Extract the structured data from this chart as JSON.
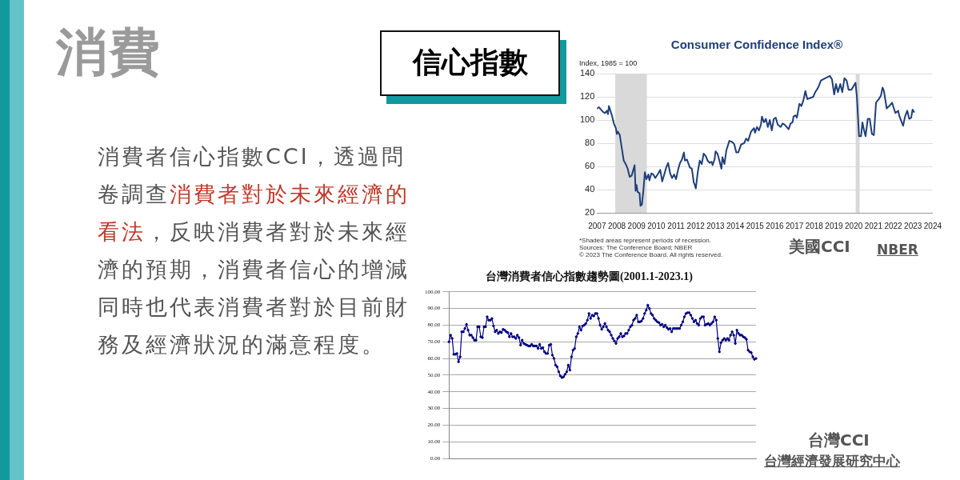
{
  "chart_data": [
    {
      "type": "other",
      "title": "消費",
      "subtitle": "信心指數",
      "annotations": [
        "消費者信心指數CCI，透過問卷調查",
        "消費者對於未來經濟的看法",
        "，反映消費者對於未來經濟的預期，消費者信心的增減同時也代表消費者對於目前財務及經濟狀況的滿意程度。"
      ]
    },
    {
      "type": "line",
      "title": "Consumer Confidence Index®",
      "ylabel": "Index, 1985 = 100",
      "series": [
        {
          "color": "#1f3f7a",
          "x": [
            2007.0,
            2007.1,
            2007.3,
            2007.4,
            2007.5,
            2007.55,
            2007.6,
            2007.75,
            2007.85,
            2007.95,
            2008.0,
            2008.05,
            2008.15,
            2008.25,
            2008.35,
            2008.45,
            2008.55,
            2008.65,
            2008.75,
            2008.85,
            2008.9,
            2008.95,
            2009.0,
            2009.05,
            2009.15,
            2009.2,
            2009.27,
            2009.35,
            2009.42,
            2009.5,
            2009.6,
            2009.65,
            2009.75,
            2009.85,
            2009.95,
            2010.1,
            2010.2,
            2010.3,
            2010.4,
            2010.5,
            2010.6,
            2010.7,
            2010.8,
            2010.9,
            2011.0,
            2011.1,
            2011.2,
            2011.3,
            2011.4,
            2011.45,
            2011.55,
            2011.7,
            2011.8,
            2011.9,
            2011.95,
            2012.0,
            2012.1,
            2012.2,
            2012.3,
            2012.4,
            2012.5,
            2012.6,
            2012.7,
            2012.8,
            2012.85,
            2012.95,
            2013.0,
            2013.1,
            2013.15,
            2013.3,
            2013.35,
            2013.45,
            2013.55,
            2013.7,
            2013.85,
            2013.95,
            2014.05,
            2014.15,
            2014.3,
            2014.45,
            2014.55,
            2014.65,
            2014.8,
            2014.95,
            2015.0,
            2015.1,
            2015.2,
            2015.3,
            2015.35,
            2015.45,
            2015.55,
            2015.65,
            2015.75,
            2015.85,
            2015.95,
            2016.05,
            2016.15,
            2016.3,
            2016.4,
            2016.5,
            2016.6,
            2016.7,
            2016.8,
            2016.9,
            2016.95,
            2017.05,
            2017.12,
            2017.25,
            2017.35,
            2017.45,
            2017.55,
            2017.65,
            2017.8,
            2017.95,
            2018.05,
            2018.2,
            2018.34,
            2018.55,
            2018.79,
            2018.9,
            2019.01,
            2019.1,
            2019.2,
            2019.32,
            2019.42,
            2019.53,
            2019.64,
            2019.74,
            2019.88,
            2020.09,
            2020.16,
            2020.27,
            2020.37,
            2020.44,
            2020.51,
            2020.6,
            2020.71,
            2020.81,
            2020.92,
            2021.02,
            2021.13,
            2021.27,
            2021.38,
            2021.46,
            2021.53,
            2021.67,
            2021.8,
            2021.94,
            2022.11,
            2022.25,
            2022.32,
            2022.5,
            2022.6,
            2022.71,
            2022.81,
            2022.91,
            2022.98,
            2023.05
          ],
          "values": [
            110,
            111,
            107,
            106,
            108,
            105,
            112,
            104,
            97,
            93,
            88,
            90,
            87,
            76,
            65,
            62,
            58,
            51,
            52,
            58,
            61,
            39,
            44,
            38,
            37,
            26,
            27,
            40,
            55,
            49,
            53,
            48,
            54,
            53,
            50,
            54,
            57,
            47,
            53,
            59,
            63,
            54,
            50,
            53,
            49,
            57,
            63,
            66,
            72,
            65,
            66,
            59,
            58,
            46,
            44,
            41,
            55,
            65,
            62,
            71,
            69,
            65,
            63,
            64,
            61,
            66,
            73,
            71,
            68,
            58,
            68,
            62,
            74,
            82,
            81,
            79,
            72,
            72,
            79,
            80,
            84,
            82,
            90,
            93,
            89,
            94,
            91,
            96,
            103,
            98,
            101,
            94,
            100,
            91,
            101,
            102,
            96,
            94,
            97,
            96,
            94,
            92,
            97,
            98,
            103,
            104,
            102,
            114,
            112,
            117,
            125,
            118,
            119,
            120,
            124,
            128,
            134,
            136,
            138,
            135,
            122,
            131,
            124,
            131,
            124,
            136,
            134,
            126,
            126,
            132,
            120,
            86,
            86,
            98,
            92,
            86,
            101,
            101,
            88,
            87,
            115,
            118,
            121,
            128,
            125,
            110,
            112,
            115,
            106,
            108,
            103,
            95,
            103,
            108,
            101,
            102,
            109,
            107
          ]
        }
      ],
      "xlim": [
        2007,
        2024
      ],
      "xticks": [
        2007,
        2008,
        2009,
        2010,
        2011,
        2012,
        2013,
        2014,
        2015,
        2016,
        2017,
        2018,
        2019,
        2020,
        2021,
        2022,
        2023,
        2024
      ],
      "ylim": [
        20,
        140
      ],
      "yticks": [
        20,
        40,
        60,
        80,
        100,
        120,
        140
      ],
      "grid": "y",
      "marker": "none",
      "line_style": "solid",
      "legend": false,
      "bands": [
        {
          "axis": "x",
          "from": 2007.92,
          "to": 2009.52,
          "color": "#d9d9d9"
        },
        {
          "axis": "x",
          "from": 2020.1,
          "to": 2020.3,
          "color": "#d9d9d9"
        }
      ],
      "annotations": [
        "*Shaded areas represent periods of recession.",
        "Sources: The Conference Board; NBER",
        "© 2023 The Conference Board. All rights reserved.",
        "美國CCI",
        "NBER"
      ]
    },
    {
      "type": "line",
      "title": "台灣消費者信心指數趨勢圖(2001.1-2023.1)",
      "categories": [
        null,
        null,
        null,
        null,
        null,
        null,
        null,
        null,
        null,
        null,
        null,
        null,
        null,
        null,
        null,
        null,
        null,
        null,
        null,
        null,
        null,
        null,
        null,
        null,
        null,
        null,
        null,
        null,
        null,
        null,
        null,
        null,
        null,
        null,
        null,
        null,
        null,
        null,
        null,
        null,
        null,
        null,
        null,
        null,
        null,
        null,
        null,
        null,
        null,
        null,
        null,
        null,
        null,
        null,
        null,
        null,
        null,
        null,
        null,
        null,
        null,
        null,
        null,
        null,
        null,
        null,
        null,
        null,
        null,
        null,
        null,
        null,
        null,
        null,
        null,
        null,
        null,
        null,
        null,
        null,
        null,
        null,
        null,
        null,
        null,
        null,
        null,
        null,
        null,
        null,
        null,
        null,
        null,
        null,
        null,
        null,
        null,
        null,
        null,
        null,
        null,
        null,
        null,
        null,
        null,
        null,
        null,
        null,
        null,
        null,
        null,
        null,
        null,
        null,
        null,
        null,
        null,
        null,
        null,
        null,
        null,
        null,
        null,
        null,
        null,
        null,
        null,
        null,
        null,
        null,
        null,
        null,
        null,
        null,
        null,
        null,
        null,
        null,
        null,
        null,
        null,
        null,
        null,
        null,
        null,
        null,
        null,
        null,
        null,
        null,
        null,
        null,
        null,
        null,
        null,
        null,
        null,
        null,
        null,
        null,
        null,
        null,
        null,
        null,
        null,
        null,
        null,
        null,
        null,
        null,
        null,
        null,
        null,
        null,
        null,
        null,
        null,
        null,
        null,
        null,
        null,
        null,
        null,
        null,
        null,
        null,
        null,
        null,
        null,
        null,
        null,
        null,
        null,
        null
      ],
      "series": [
        {
          "color": "#000080",
          "values": [
            70,
            74,
            72,
            62.5,
            62.5,
            63,
            58,
            61,
            76,
            76,
            78,
            80.5,
            77,
            74,
            74,
            72.5,
            71,
            71,
            79,
            79,
            73,
            72.5,
            79,
            79,
            85,
            83,
            83,
            84,
            79.5,
            76,
            77,
            75,
            76,
            75.5,
            77.5,
            77,
            76,
            75.5,
            73,
            75,
            73,
            73,
            72,
            74,
            72.5,
            68,
            71,
            69,
            68.5,
            68,
            67.5,
            67.5,
            68.5,
            67.5,
            67.5,
            67.5,
            66,
            68.5,
            66,
            66.5,
            64,
            63,
            63,
            68,
            68.5,
            62,
            60,
            56,
            55,
            52,
            49.5,
            48.5,
            49,
            50.5,
            52,
            56,
            53,
            61,
            65,
            66,
            73,
            75,
            79,
            77,
            79.5,
            80,
            81,
            83,
            87,
            84,
            86,
            85.5,
            87,
            87,
            84,
            80,
            77.5,
            79,
            81,
            79,
            77,
            76,
            74,
            72,
            70.5,
            69,
            72,
            73,
            75,
            73,
            73.5,
            75,
            75,
            77,
            79,
            80,
            83,
            84,
            86,
            82,
            82,
            82.5,
            84,
            87,
            89,
            92,
            90,
            87,
            86,
            84,
            83,
            82,
            81.5,
            80,
            80.5,
            79,
            80,
            78.5,
            77.5,
            78,
            76,
            78,
            78,
            78,
            78,
            78,
            80,
            82,
            85,
            87,
            87.5,
            87.5,
            86,
            84,
            82,
            83,
            81,
            80,
            84,
            85,
            85,
            80,
            80.5,
            81,
            80,
            81,
            82,
            85,
            83,
            72,
            64,
            69.5,
            71,
            72,
            71,
            72,
            71,
            74,
            76,
            74,
            69,
            77,
            75,
            74,
            74,
            73,
            72.5,
            71.5,
            65,
            64,
            63.5,
            61,
            59.5,
            60
          ]
        }
      ],
      "ylim": [
        0,
        100
      ],
      "yticks": [
        {
          "value": 0,
          "label": "0.00"
        },
        {
          "value": 10,
          "label": "10.00"
        },
        {
          "value": 20,
          "label": "20.00"
        },
        {
          "value": 30,
          "label": "30.00"
        },
        {
          "value": 40,
          "label": "40.00"
        },
        {
          "value": 50,
          "label": "50.00"
        },
        {
          "value": 60,
          "label": "60.00"
        },
        {
          "value": 70,
          "label": "70.00"
        },
        {
          "value": 80,
          "label": "80.00"
        },
        {
          "value": 90,
          "label": "90.00"
        },
        {
          "value": 100,
          "label": "100.00"
        }
      ],
      "grid": "y",
      "marker": "circle",
      "line_style": "solid",
      "legend": false,
      "annotations": [
        "台灣CCI",
        "台灣經濟發展研究中心"
      ]
    }
  ]
}
